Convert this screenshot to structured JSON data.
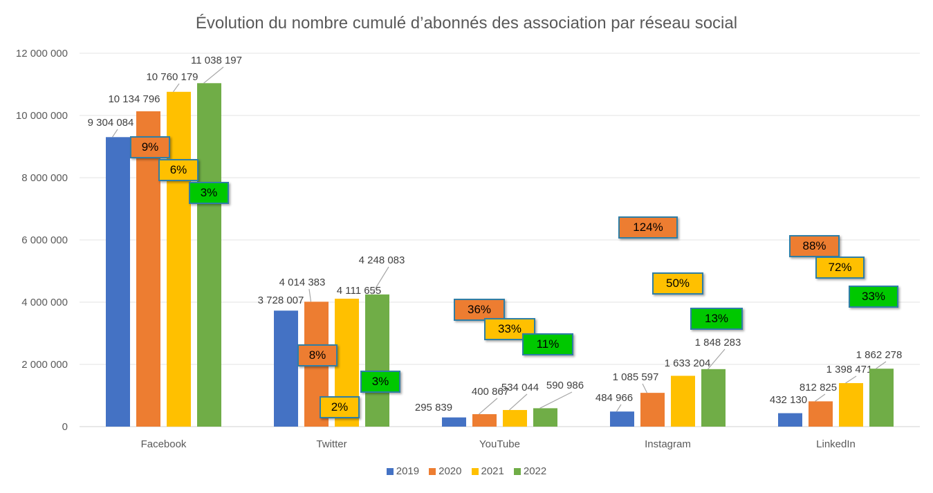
{
  "chart_data": {
    "type": "bar",
    "title": "Évolution du nombre cumulé d’abonnés des association par réseau social",
    "categories": [
      "Facebook",
      "Twitter",
      "YouTube",
      "Instagram",
      "LinkedIn"
    ],
    "series": [
      {
        "name": "2019",
        "color": "#4472c4",
        "values": [
          9304084,
          3728007,
          295839,
          484966,
          432130
        ]
      },
      {
        "name": "2020",
        "color": "#ed7d31",
        "values": [
          10134796,
          4014383,
          400867,
          1085597,
          812825
        ]
      },
      {
        "name": "2021",
        "color": "#ffc000",
        "values": [
          10760179,
          4111655,
          534044,
          1633204,
          1398471
        ]
      },
      {
        "name": "2022",
        "color": "#70ad47",
        "values": [
          11038197,
          4248083,
          590986,
          1848283,
          1862278
        ]
      }
    ],
    "value_labels": [
      [
        "9 304 084",
        "3 728 007",
        "295 839",
        "484 966",
        "432 130"
      ],
      [
        "10 134 796",
        "4 014 383",
        "400 867",
        "1 085 597",
        "812 825"
      ],
      [
        "10 760 179",
        "4 111 655",
        "534 044",
        "1 633 204",
        "1 398 471"
      ],
      [
        "11 038 197",
        "4 248 083",
        "590 986",
        "1 848 283",
        "1 862 278"
      ]
    ],
    "growth_annotations": [
      {
        "category": "Facebook",
        "labels": [
          "9%",
          "6%",
          "3%"
        ]
      },
      {
        "category": "Twitter",
        "labels": [
          "8%",
          "2%",
          "3%"
        ]
      },
      {
        "category": "YouTube",
        "labels": [
          "36%",
          "33%",
          "11%"
        ]
      },
      {
        "category": "Instagram",
        "labels": [
          "124%",
          "50%",
          "13%"
        ]
      },
      {
        "category": "LinkedIn",
        "labels": [
          "88%",
          "72%",
          "33%"
        ]
      }
    ],
    "growth_colors": [
      "#ed7d31",
      "#ffc000",
      "#00c800"
    ],
    "y_ticks": [
      "0",
      "2 000 000",
      "4 000 000",
      "6 000 000",
      "8 000 000",
      "10 000 000",
      "12 000 000"
    ],
    "ylim": [
      0,
      12000000
    ],
    "grid": true,
    "legend": "bottom",
    "xlabel": "",
    "ylabel": ""
  }
}
